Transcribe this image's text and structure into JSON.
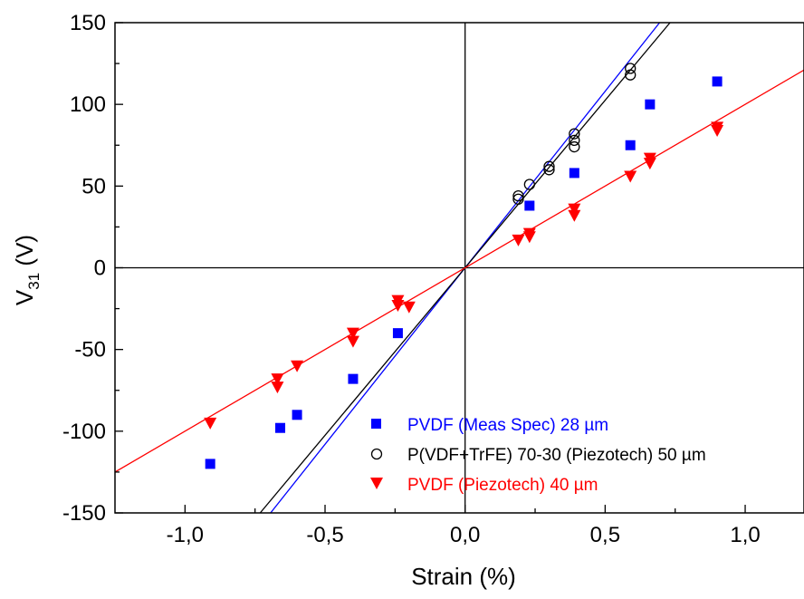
{
  "chart_data": {
    "type": "scatter",
    "xlabel": "Strain (%)",
    "ylabel": {
      "main": "V",
      "sub": "31",
      "unit": " (V)"
    },
    "xlim": [
      -1.25,
      1.21
    ],
    "ylim": [
      -150,
      150
    ],
    "x_ticks": [
      -1.0,
      -0.5,
      0.0,
      0.5,
      1.0
    ],
    "x_tick_labels": [
      "-1,0",
      "-0,5",
      "0,0",
      "0,5",
      "1,0"
    ],
    "y_ticks": [
      -150,
      -100,
      -50,
      0,
      50,
      100,
      150
    ],
    "y_tick_labels": [
      "-150",
      "-100",
      "-50",
      "0",
      "50",
      "100",
      "150"
    ],
    "zero_lines": true,
    "legend_placement": "bottom-right",
    "series": [
      {
        "name": "PVDF (Meas Spec) 28 µm",
        "marker": "square",
        "color": "#0000ff",
        "points": [
          [
            -0.91,
            -120
          ],
          [
            -0.66,
            -98
          ],
          [
            -0.6,
            -90
          ],
          [
            -0.4,
            -68
          ],
          [
            -0.24,
            -40
          ],
          [
            0.23,
            38
          ],
          [
            0.39,
            58
          ],
          [
            0.59,
            75
          ],
          [
            0.66,
            100
          ],
          [
            0.9,
            114
          ]
        ],
        "fit_slope": 216
      },
      {
        "name": "P(VDF+TrFE) 70-30 (Piezotech) 50 µm",
        "marker": "circle-open",
        "color": "#000000",
        "points": [
          [
            0.19,
            42
          ],
          [
            0.19,
            44
          ],
          [
            0.23,
            51
          ],
          [
            0.3,
            60
          ],
          [
            0.3,
            62
          ],
          [
            0.39,
            74
          ],
          [
            0.39,
            78
          ],
          [
            0.39,
            82
          ],
          [
            0.59,
            118
          ],
          [
            0.59,
            122
          ]
        ],
        "fit_slope": 205
      },
      {
        "name": "PVDF (Piezotech) 40 µm",
        "marker": "triangle-down",
        "color": "#ff0000",
        "points": [
          [
            -0.91,
            -95
          ],
          [
            -0.67,
            -68
          ],
          [
            -0.67,
            -73
          ],
          [
            -0.6,
            -60
          ],
          [
            -0.4,
            -40
          ],
          [
            -0.4,
            -45
          ],
          [
            -0.24,
            -20
          ],
          [
            -0.24,
            -23
          ],
          [
            -0.2,
            -24
          ],
          [
            0.19,
            17
          ],
          [
            0.23,
            19
          ],
          [
            0.23,
            21
          ],
          [
            0.39,
            32
          ],
          [
            0.39,
            36
          ],
          [
            0.59,
            56
          ],
          [
            0.66,
            64
          ],
          [
            0.66,
            67
          ],
          [
            0.9,
            84
          ],
          [
            0.9,
            86
          ]
        ],
        "fit_slope": 100
      }
    ]
  }
}
